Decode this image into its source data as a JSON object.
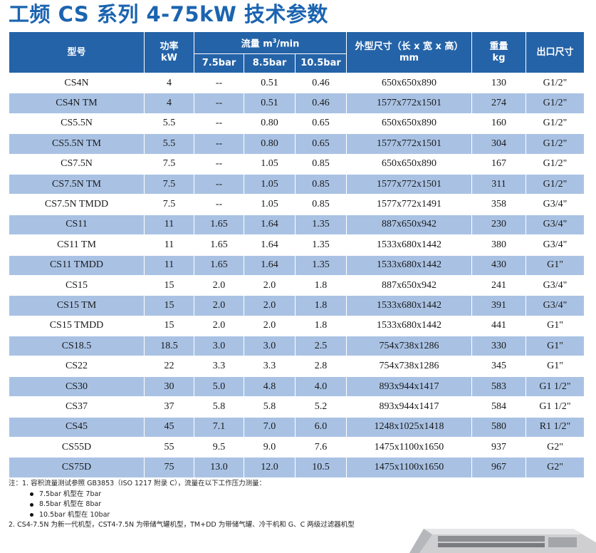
{
  "title": "工频 CS 系列 4-75kW 技术参数",
  "table": {
    "headers": {
      "model": "型号",
      "power_name": "功率",
      "power_unit": "kW",
      "flow_name": "流量 m",
      "flow_sup": "3",
      "flow_unit": "/min",
      "p75": "7.5bar",
      "p85": "8.5bar",
      "p105": "10.5bar",
      "dims_name": "外型尺寸（长 x 宽 x 高）",
      "dims_unit": "mm",
      "weight_name": "重量",
      "weight_unit": "kg",
      "outlet": "出口尺寸"
    },
    "rows": [
      [
        "CS4N",
        "4",
        "--",
        "0.51",
        "0.46",
        "650x650x890",
        "130",
        "G1/2\""
      ],
      [
        "CS4N TM",
        "4",
        "--",
        "0.51",
        "0.46",
        "1577x772x1501",
        "274",
        "G1/2\""
      ],
      [
        "CS5.5N",
        "5.5",
        "--",
        "0.80",
        "0.65",
        "650x650x890",
        "160",
        "G1/2\""
      ],
      [
        "CS5.5N TM",
        "5.5",
        "--",
        "0.80",
        "0.65",
        "1577x772x1501",
        "304",
        "G1/2\""
      ],
      [
        "CS7.5N",
        "7.5",
        "--",
        "1.05",
        "0.85",
        "650x650x890",
        "167",
        "G1/2\""
      ],
      [
        "CS7.5N TM",
        "7.5",
        "--",
        "1.05",
        "0.85",
        "1577x772x1501",
        "311",
        "G1/2\""
      ],
      [
        "CS7.5N TMDD",
        "7.5",
        "--",
        "1.05",
        "0.85",
        "1577x772x1491",
        "358",
        "G3/4\""
      ],
      [
        "CS11",
        "11",
        "1.65",
        "1.64",
        "1.35",
        "887x650x942",
        "230",
        "G3/4\""
      ],
      [
        "CS11 TM",
        "11",
        "1.65",
        "1.64",
        "1.35",
        "1533x680x1442",
        "380",
        "G3/4\""
      ],
      [
        "CS11 TMDD",
        "11",
        "1.65",
        "1.64",
        "1.35",
        "1533x680x1442",
        "430",
        "G1\""
      ],
      [
        "CS15",
        "15",
        "2.0",
        "2.0",
        "1.8",
        "887x650x942",
        "241",
        "G3/4\""
      ],
      [
        "CS15 TM",
        "15",
        "2.0",
        "2.0",
        "1.8",
        "1533x680x1442",
        "391",
        "G3/4\""
      ],
      [
        "CS15 TMDD",
        "15",
        "2.0",
        "2.0",
        "1.8",
        "1533x680x1442",
        "441",
        "G1\""
      ],
      [
        "CS18.5",
        "18.5",
        "3.0",
        "3.0",
        "2.5",
        "754x738x1286",
        "330",
        "G1\""
      ],
      [
        "CS22",
        "22",
        "3.3",
        "3.3",
        "2.8",
        "754x738x1286",
        "345",
        "G1\""
      ],
      [
        "CS30",
        "30",
        "5.0",
        "4.8",
        "4.0",
        "893x944x1417",
        "583",
        "G1 1/2\""
      ],
      [
        "CS37",
        "37",
        "5.8",
        "5.8",
        "5.2",
        "893x944x1417",
        "584",
        "G1 1/2\""
      ],
      [
        "CS45",
        "45",
        "7.1",
        "7.0",
        "6.0",
        "1248x1025x1418",
        "580",
        "R1 1/2\""
      ],
      [
        "CS55D",
        "55",
        "9.5",
        "9.0",
        "7.6",
        "1475x1100x1650",
        "937",
        "G2\""
      ],
      [
        "CS75D",
        "75",
        "13.0",
        "12.0",
        "10.5",
        "1475x1100x1650",
        "967",
        "G2\""
      ]
    ]
  },
  "notes": {
    "note1": "注：1. 容积流量测试参照 GB3853（ISO 1217 附录 C），流量在以下工作压力测量：",
    "bullets": [
      "7.5bar 机型在 7bar",
      "8.5bar 机型在 8bar",
      "10.5bar 机型在 10bar"
    ],
    "note2": "2. CS4-7.5N 为新一代机型，CST4-7.5N 为带储气罐机型，TM+DD 为带储气罐、冷干机和 G、C 两级过滤器机型"
  },
  "colors": {
    "title": "#1b64b0",
    "header_bg": "#2463a8",
    "stripe": "#a9c2e4"
  }
}
